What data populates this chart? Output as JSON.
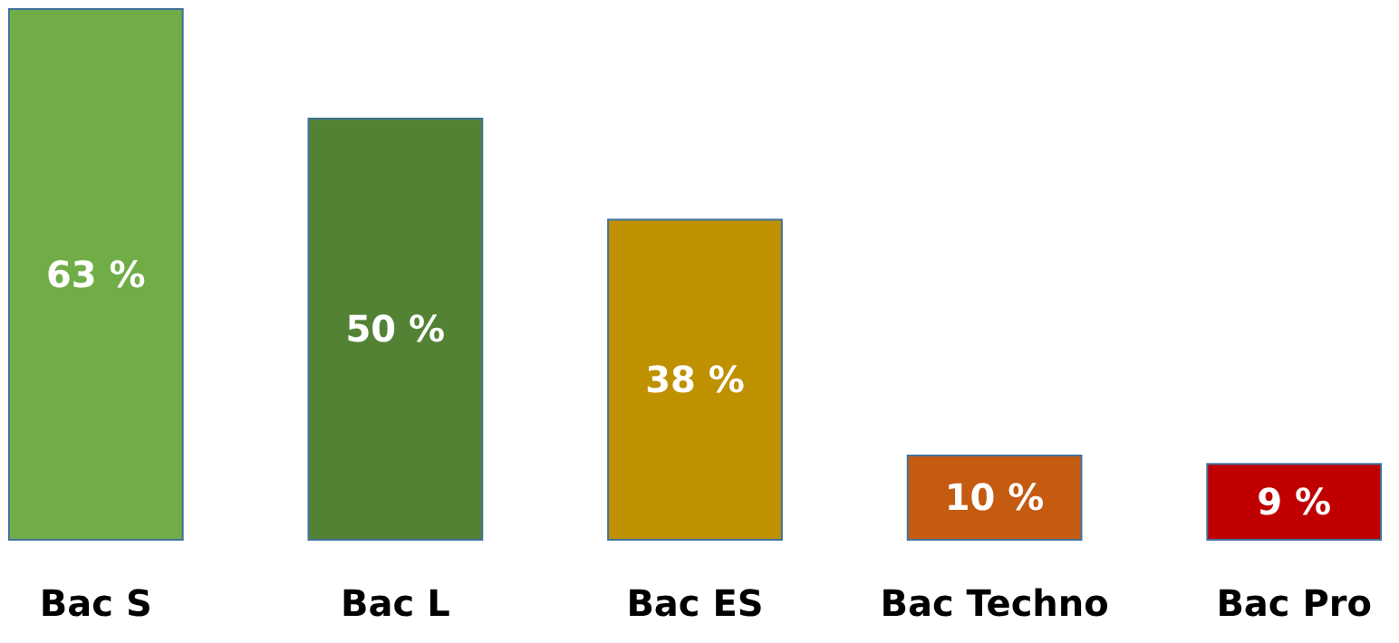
{
  "chart_data": {
    "type": "bar",
    "categories": [
      "Bac S",
      "Bac L",
      "Bac ES",
      "Bac Techno",
      "Bac Pro"
    ],
    "values": [
      63,
      50,
      38,
      10,
      9
    ],
    "colors": [
      "#70ad47",
      "#548235",
      "#bf9000",
      "#c55a11",
      "#c00000"
    ],
    "value_labels": [
      "63 %",
      "50 %",
      "38 %",
      "10 %",
      "9 %"
    ]
  }
}
